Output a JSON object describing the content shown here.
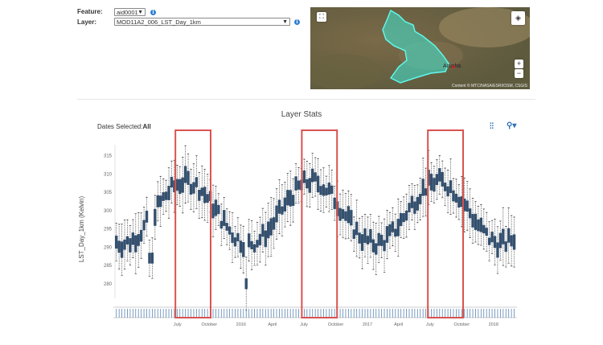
{
  "feature": {
    "label": "Feature:",
    "value": "aid0001"
  },
  "layer": {
    "label": "Layer:",
    "value": "MOD11A2_006_LST_Day_1km"
  },
  "map": {
    "place_label": "Arusha",
    "attribution": "Content © MTC/NASA/ESRI/OSM, CSGIS",
    "zoom_in": "+",
    "zoom_out": "−"
  },
  "stats": {
    "title": "Layer Stats",
    "dates_prefix": "Dates Selected:",
    "dates_value": "All"
  },
  "colors": {
    "box": "#34506e",
    "highlight": "#d9534f",
    "accent": "#2d7fd3",
    "polygon": "#3ee8d4"
  },
  "chart_data": {
    "type": "box",
    "ylabel": "LST_Day_1km (Kelvin)",
    "ylim": [
      276,
      318
    ],
    "yticks": [
      280,
      285,
      290,
      295,
      300,
      305,
      310,
      315
    ],
    "x_start": "2015-01-01",
    "x_end": "2018-03-10",
    "x_tick_labels": [
      {
        "date": "2015-07-01",
        "label": "July"
      },
      {
        "date": "2015-10-01",
        "label": "October"
      },
      {
        "date": "2016-01-01",
        "label": "2016"
      },
      {
        "date": "2016-04-01",
        "label": "April"
      },
      {
        "date": "2016-07-01",
        "label": "July"
      },
      {
        "date": "2016-10-01",
        "label": "October"
      },
      {
        "date": "2017-01-01",
        "label": "2017"
      },
      {
        "date": "2017-04-01",
        "label": "April"
      },
      {
        "date": "2017-07-01",
        "label": "July"
      },
      {
        "date": "2017-10-01",
        "label": "October"
      },
      {
        "date": "2018-01-01",
        "label": "2018"
      }
    ],
    "highlights": [
      {
        "start": "2015-06-25",
        "end": "2015-10-05"
      },
      {
        "start": "2016-06-25",
        "end": "2016-10-05"
      },
      {
        "start": "2017-06-25",
        "end": "2017-10-05"
      }
    ],
    "seasonal": {
      "mean": 299.5,
      "amplitude": 8.5,
      "peak_day_of_year": 205,
      "step_days": 8
    },
    "outliers": [
      {
        "date": "2015-04-15",
        "value": 287
      },
      {
        "date": "2016-01-17",
        "value": 280
      }
    ]
  }
}
